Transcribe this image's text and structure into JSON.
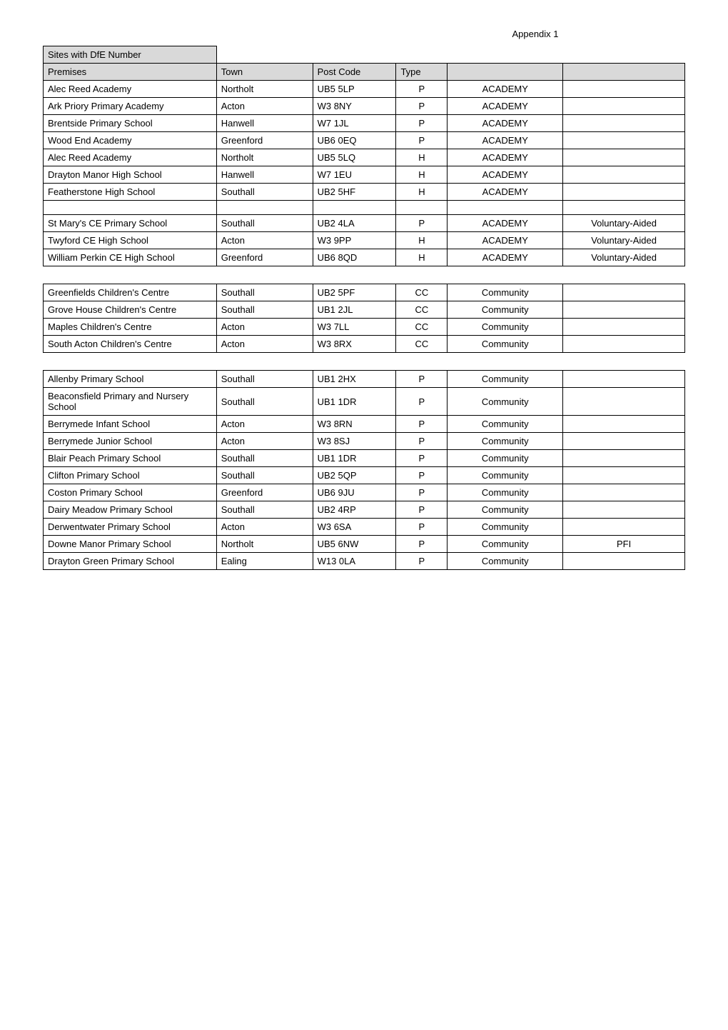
{
  "appendix_label": "Appendix 1",
  "sites_label": "Sites with DfE Number",
  "columns": {
    "premises": "Premises",
    "town": "Town",
    "postcode": "Post Code",
    "type": "Type"
  },
  "table1": [
    {
      "premises": "Alec Reed Academy",
      "town": "Northolt",
      "postcode": "UB5 5LP",
      "type": "P",
      "cat": "ACADEMY",
      "extra": ""
    },
    {
      "premises": "Ark Priory Primary Academy",
      "town": "Acton",
      "postcode": "W3 8NY",
      "type": "P",
      "cat": "ACADEMY",
      "extra": ""
    },
    {
      "premises": "Brentside Primary School",
      "town": "Hanwell",
      "postcode": "W7 1JL",
      "type": "P",
      "cat": "ACADEMY",
      "extra": ""
    },
    {
      "premises": "Wood End Academy",
      "town": "Greenford",
      "postcode": "UB6 0EQ",
      "type": "P",
      "cat": "ACADEMY",
      "extra": ""
    },
    {
      "premises": "Alec Reed Academy",
      "town": "Northolt",
      "postcode": "UB5 5LQ",
      "type": "H",
      "cat": "ACADEMY",
      "extra": ""
    },
    {
      "premises": "Drayton Manor High School",
      "town": "Hanwell",
      "postcode": "W7 1EU",
      "type": "H",
      "cat": "ACADEMY",
      "extra": ""
    },
    {
      "premises": "Featherstone High School",
      "town": "Southall",
      "postcode": "UB2 5HF",
      "type": "H",
      "cat": "ACADEMY",
      "extra": ""
    },
    {
      "_spacer": true
    },
    {
      "premises": "St Mary's CE Primary School",
      "town": "Southall",
      "postcode": "UB2 4LA",
      "type": "P",
      "cat": "ACADEMY",
      "extra": "Voluntary-Aided"
    },
    {
      "premises": "Twyford CE High School",
      "town": "Acton",
      "postcode": "W3 9PP",
      "type": "H",
      "cat": "ACADEMY",
      "extra": "Voluntary-Aided"
    },
    {
      "premises": "William Perkin CE High School",
      "town": "Greenford",
      "postcode": "UB6 8QD",
      "type": "H",
      "cat": "ACADEMY",
      "extra": "Voluntary-Aided"
    }
  ],
  "table2": [
    {
      "premises": "Greenfields Children's Centre",
      "town": "Southall",
      "postcode": "UB2 5PF",
      "type": "CC",
      "cat": "Community",
      "extra": ""
    },
    {
      "premises": "Grove House Children's Centre",
      "town": "Southall",
      "postcode": "UB1 2JL",
      "type": "CC",
      "cat": "Community",
      "extra": ""
    },
    {
      "premises": "Maples Children's Centre",
      "town": "Acton",
      "postcode": "W3 7LL",
      "type": "CC",
      "cat": "Community",
      "extra": ""
    },
    {
      "premises": "South Acton Children's Centre",
      "town": "Acton",
      "postcode": "W3 8RX",
      "type": "CC",
      "cat": "Community",
      "extra": ""
    }
  ],
  "table3": [
    {
      "premises": "Allenby Primary School",
      "town": "Southall",
      "postcode": "UB1 2HX",
      "type": "P",
      "cat": "Community",
      "extra": ""
    },
    {
      "premises": "Beaconsfield Primary and Nursery School",
      "town": "Southall",
      "postcode": "UB1 1DR",
      "type": "P",
      "cat": "Community",
      "extra": ""
    },
    {
      "premises": "Berrymede Infant School",
      "town": "Acton",
      "postcode": "W3 8RN",
      "type": "P",
      "cat": "Community",
      "extra": ""
    },
    {
      "premises": "Berrymede Junior School",
      "town": "Acton",
      "postcode": "W3 8SJ",
      "type": "P",
      "cat": "Community",
      "extra": ""
    },
    {
      "premises": "Blair Peach Primary School",
      "town": "Southall",
      "postcode": "UB1 1DR",
      "type": "P",
      "cat": "Community",
      "extra": ""
    },
    {
      "premises": "Clifton Primary School",
      "town": "Southall",
      "postcode": "UB2 5QP",
      "type": "P",
      "cat": "Community",
      "extra": ""
    },
    {
      "premises": "Coston Primary School",
      "town": "Greenford",
      "postcode": "UB6 9JU",
      "type": "P",
      "cat": "Community",
      "extra": ""
    },
    {
      "premises": "Dairy Meadow Primary School",
      "town": "Southall",
      "postcode": "UB2 4RP",
      "type": "P",
      "cat": "Community",
      "extra": ""
    },
    {
      "premises": "Derwentwater Primary School",
      "town": "Acton",
      "postcode": "W3 6SA",
      "type": "P",
      "cat": "Community",
      "extra": ""
    },
    {
      "premises": "Downe Manor Primary School",
      "town": "Northolt",
      "postcode": "UB5 6NW",
      "type": "P",
      "cat": "Community",
      "extra": "PFI"
    },
    {
      "premises": "Drayton Green Primary School",
      "town": "Ealing",
      "postcode": "W13 0LA",
      "type": "P",
      "cat": "Community",
      "extra": ""
    }
  ],
  "style": {
    "header_bg": "#d9d9d9",
    "border_color": "#000000",
    "font_family": "Arial",
    "font_size_pt": 10
  }
}
